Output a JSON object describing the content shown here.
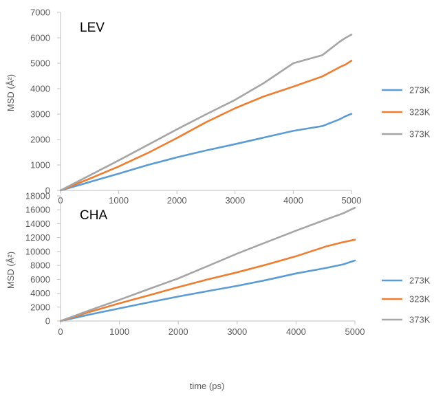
{
  "colors": {
    "273K": "#5b9bd5",
    "323K": "#ed7d31",
    "373K": "#a5a5a5",
    "axis": "#bfbfbf",
    "text": "#595959"
  },
  "chart_data": [
    {
      "type": "line",
      "title": "LEV",
      "xlabel": "",
      "ylabel": "MSD (Å²)",
      "xlim": [
        0,
        5000
      ],
      "ylim": [
        0,
        7000
      ],
      "xticks": [
        0,
        1000,
        2000,
        3000,
        4000,
        5000
      ],
      "yticks": [
        0,
        1000,
        2000,
        3000,
        4000,
        5000,
        6000,
        7000
      ],
      "grid": false,
      "legend": "right",
      "x": [
        0,
        500,
        1000,
        1500,
        2000,
        2500,
        3000,
        3500,
        4000,
        4500,
        4800,
        4900,
        5000
      ],
      "series": [
        {
          "name": "273K",
          "values": [
            0,
            330,
            660,
            1000,
            1300,
            1570,
            1820,
            2080,
            2340,
            2530,
            2800,
            2920,
            3010
          ]
        },
        {
          "name": "323K",
          "values": [
            0,
            460,
            940,
            1470,
            2060,
            2680,
            3230,
            3700,
            4080,
            4480,
            4850,
            4950,
            5100
          ]
        },
        {
          "name": "373K",
          "values": [
            0,
            590,
            1180,
            1790,
            2400,
            2990,
            3560,
            4230,
            5000,
            5320,
            5850,
            6000,
            6130
          ]
        }
      ]
    },
    {
      "type": "line",
      "title": "CHA",
      "xlabel": "time (ps)",
      "ylabel": "MSD (Å²)",
      "xlim": [
        0,
        5000
      ],
      "ylim": [
        0,
        18000
      ],
      "xticks": [
        0,
        1000,
        2000,
        3000,
        4000,
        5000
      ],
      "yticks": [
        0,
        2000,
        4000,
        6000,
        8000,
        10000,
        12000,
        14000,
        16000,
        18000
      ],
      "grid": false,
      "legend": "right",
      "x": [
        0,
        500,
        1000,
        1500,
        2000,
        2500,
        3000,
        3500,
        4000,
        4500,
        4800,
        5000
      ],
      "series": [
        {
          "name": "273K",
          "values": [
            0,
            940,
            1820,
            2680,
            3520,
            4300,
            5050,
            5900,
            6840,
            7620,
            8150,
            8700
          ]
        },
        {
          "name": "323K",
          "values": [
            0,
            1330,
            2540,
            3700,
            4880,
            5980,
            7000,
            8120,
            9320,
            10700,
            11340,
            11700
          ]
        },
        {
          "name": "373K",
          "values": [
            0,
            1560,
            3050,
            4600,
            6130,
            7900,
            9700,
            11350,
            13000,
            14580,
            15500,
            16300
          ]
        }
      ]
    }
  ]
}
